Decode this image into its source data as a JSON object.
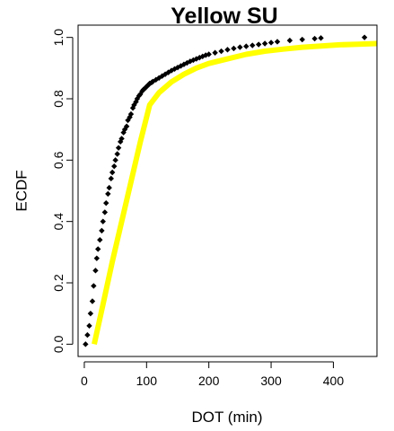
{
  "chart_data": {
    "type": "scatter",
    "title": "Yellow SU",
    "xlabel": "DOT (min)",
    "ylabel": "ECDF",
    "xlim": [
      -10,
      470
    ],
    "ylim": [
      -0.04,
      1.04
    ],
    "x_ticks": [
      0,
      100,
      200,
      300,
      400
    ],
    "x_tick_labels": [
      "0",
      "100",
      "200",
      "300",
      "400"
    ],
    "y_ticks": [
      0.0,
      0.2,
      0.4,
      0.6,
      0.8,
      1.0
    ],
    "y_tick_labels": [
      "0.0",
      "0.2",
      "0.4",
      "0.6",
      "0.8",
      "1.0"
    ],
    "grid": false,
    "legend": "none",
    "series": [
      {
        "kind": "points",
        "color": "#000000",
        "x": [
          2,
          5,
          8,
          10,
          13,
          15,
          18,
          20,
          22,
          25,
          28,
          30,
          33,
          35,
          38,
          40,
          43,
          45,
          48,
          50,
          53,
          55,
          58,
          60,
          63,
          65,
          68,
          70,
          73,
          75,
          78,
          80,
          83,
          85,
          88,
          90,
          93,
          95,
          98,
          100,
          103,
          105,
          108,
          110,
          115,
          120,
          125,
          130,
          135,
          140,
          145,
          150,
          155,
          160,
          165,
          170,
          175,
          180,
          185,
          190,
          195,
          200,
          210,
          220,
          230,
          240,
          250,
          260,
          270,
          280,
          290,
          300,
          310,
          330,
          350,
          370,
          380,
          450
        ],
        "y": [
          0.0,
          0.03,
          0.06,
          0.1,
          0.14,
          0.19,
          0.24,
          0.28,
          0.31,
          0.34,
          0.37,
          0.4,
          0.43,
          0.46,
          0.49,
          0.51,
          0.54,
          0.56,
          0.58,
          0.6,
          0.62,
          0.64,
          0.66,
          0.67,
          0.69,
          0.7,
          0.71,
          0.73,
          0.74,
          0.75,
          0.77,
          0.78,
          0.79,
          0.8,
          0.81,
          0.815,
          0.825,
          0.83,
          0.835,
          0.84,
          0.845,
          0.85,
          0.853,
          0.856,
          0.862,
          0.868,
          0.874,
          0.88,
          0.886,
          0.892,
          0.897,
          0.902,
          0.907,
          0.912,
          0.917,
          0.922,
          0.926,
          0.93,
          0.934,
          0.938,
          0.942,
          0.945,
          0.95,
          0.955,
          0.96,
          0.964,
          0.968,
          0.971,
          0.974,
          0.977,
          0.98,
          0.983,
          0.986,
          0.99,
          0.993,
          0.996,
          0.998,
          1.0
        ]
      },
      {
        "kind": "line",
        "color": "#ffff00",
        "x": [
          16,
          30,
          45,
          60,
          75,
          90,
          105,
          120,
          140,
          160,
          180,
          200,
          230,
          260,
          290,
          320,
          350,
          380,
          410,
          440,
          470
        ],
        "y": [
          0.0,
          0.13,
          0.27,
          0.4,
          0.53,
          0.66,
          0.78,
          0.82,
          0.855,
          0.88,
          0.9,
          0.915,
          0.93,
          0.945,
          0.955,
          0.962,
          0.968,
          0.972,
          0.976,
          0.978,
          0.98
        ]
      }
    ]
  }
}
